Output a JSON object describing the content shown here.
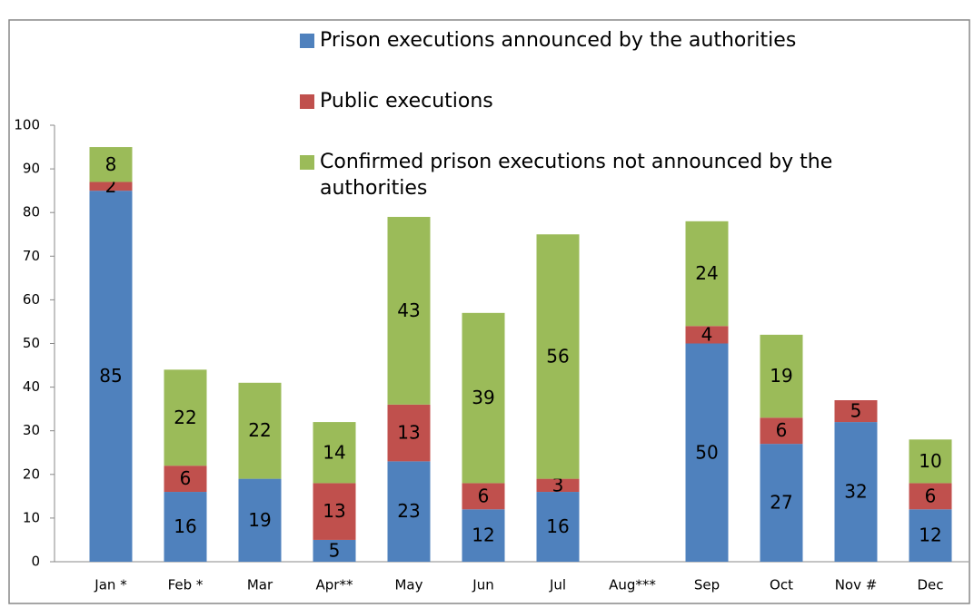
{
  "chart_data": {
    "type": "stacked-bar",
    "categories": [
      "Jan *",
      "Feb *",
      "Mar",
      "Apr**",
      "May",
      "Jun",
      "Jul",
      "Aug***",
      "Sep",
      "Oct",
      "Nov #",
      "Dec"
    ],
    "series": [
      {
        "name": "Prison executions announced by the authorities",
        "color": "#4f81bd",
        "values": [
          85,
          16,
          19,
          5,
          23,
          12,
          16,
          null,
          50,
          27,
          32,
          12
        ]
      },
      {
        "name": "Public executions",
        "color": "#c0504d",
        "values": [
          2,
          6,
          null,
          13,
          13,
          6,
          3,
          null,
          4,
          6,
          5,
          6
        ]
      },
      {
        "name": "Confirmed prison executions not announced by the authorities",
        "color": "#9bbb59",
        "values": [
          8,
          22,
          22,
          14,
          43,
          39,
          56,
          null,
          24,
          19,
          null,
          10
        ]
      }
    ],
    "ylim": [
      0,
      100
    ],
    "yticks": [
      0,
      10,
      20,
      30,
      40,
      50,
      60,
      70,
      80,
      90,
      100
    ],
    "grid": false
  }
}
